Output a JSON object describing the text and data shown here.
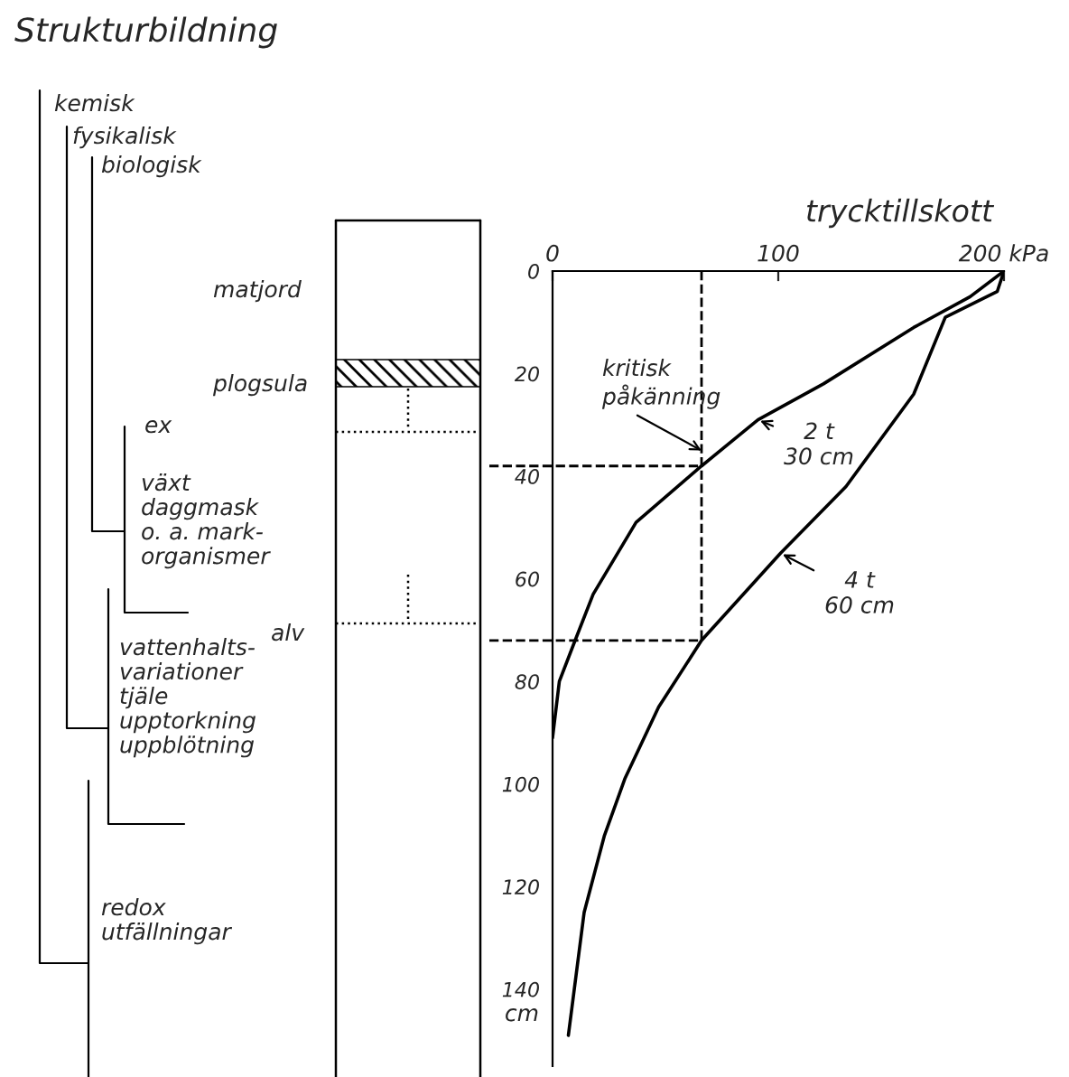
{
  "chart_data": {
    "type": "line",
    "title": "Strukturbildning",
    "xlabel": "trycktillskott",
    "ylabel": "cm",
    "series": [
      {
        "color": "#000000",
        "x": [
          200,
          185,
          160,
          120,
          91,
          66,
          37,
          18,
          10,
          3,
          0
        ],
        "values": [
          0,
          5,
          11,
          22,
          29,
          38,
          49,
          63,
          72,
          80,
          91
        ]
      },
      {
        "color": "#000000",
        "x": [
          200,
          197,
          174,
          160,
          130,
          101,
          66,
          47,
          32,
          23,
          14,
          7
        ],
        "values": [
          0,
          4,
          9,
          24,
          42,
          55,
          72,
          85,
          99,
          110,
          125,
          149
        ]
      }
    ],
    "xlim": [
      0,
      200
    ],
    "ylim": [
      155,
      0
    ],
    "xticks": [
      0,
      100,
      {
        "value": 200,
        "label": "200 kPa"
      }
    ],
    "yticks": [
      0,
      20,
      40,
      60,
      80,
      100,
      120,
      140
    ],
    "ref_lines": [
      {
        "axis": "x",
        "value": 66,
        "line_style": "dashed",
        "color": "#000000"
      },
      {
        "axis": "y",
        "value": 38,
        "line_style": "dashed",
        "color": "#000000"
      },
      {
        "axis": "y",
        "value": 72,
        "line_style": "dashed",
        "color": "#000000"
      }
    ],
    "annotations": [
      "kemisk",
      "fysikalisk",
      "biologisk",
      "matjord",
      "plogsula",
      "ex",
      "växt\ndaggmask\no. a. mark-\norganismer",
      "alv",
      "vattenhalts-\nvariationer\ntjäle\nupptorkning\nuppblötning",
      "redox\nutfällningar",
      {
        "text": "kritisk\npåkänning",
        "x": 66,
        "y": 35
      },
      {
        "text": "2 t\n30 cm",
        "x": 91,
        "y": 29
      },
      {
        "text": "4 t\n60 cm",
        "x": 101,
        "y": 55
      }
    ],
    "grid": false,
    "legend": false,
    "line_style": "solid",
    "marker": "none"
  }
}
